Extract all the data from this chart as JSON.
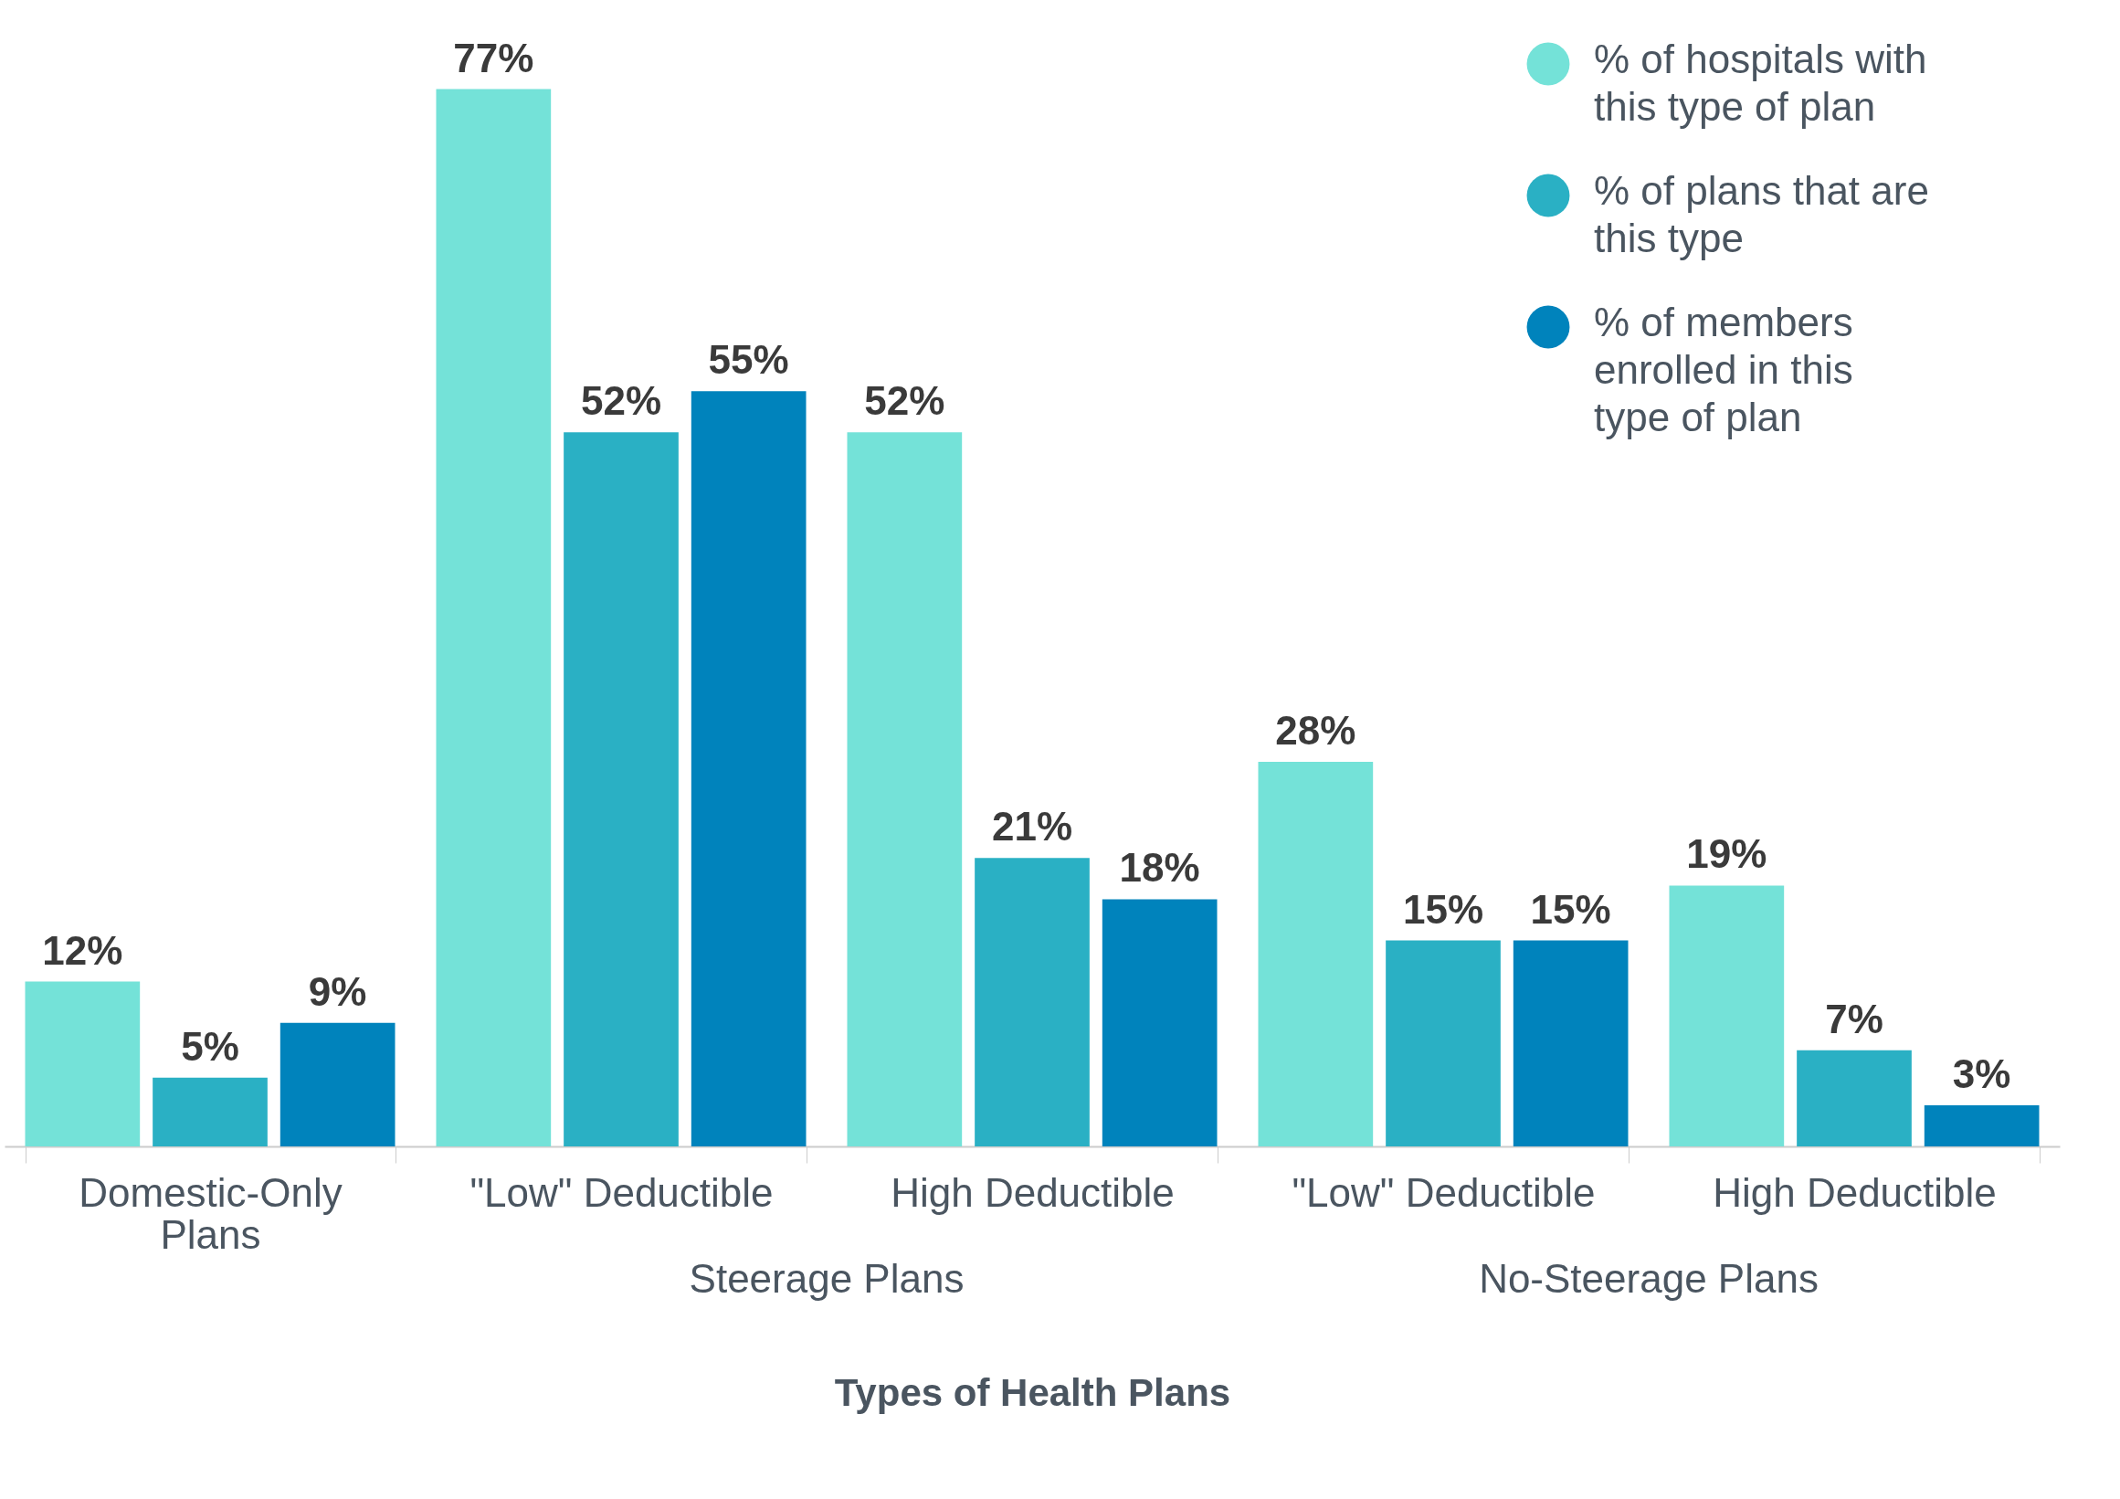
{
  "chart_data": {
    "type": "bar",
    "categories": [
      "Domestic-Only Plans",
      "\"Low\" Deductible",
      "High Deductible",
      "\"Low\" Deductible",
      "High Deductible"
    ],
    "series": [
      {
        "name": "% of hospitals with this type of plan",
        "color": "#74e2d8",
        "values": [
          12,
          77,
          52,
          28,
          19
        ],
        "value_labels": [
          "12%",
          "77%",
          "52%",
          "28%",
          "19%"
        ]
      },
      {
        "name": "% of plans that are this type",
        "color": "#2ab0c4",
        "values": [
          5,
          52,
          21,
          15,
          7
        ],
        "value_labels": [
          "5%",
          "52%",
          "21%",
          "15%",
          "7%"
        ]
      },
      {
        "name": "% of members enrolled in this type of plan",
        "color": "#0083bc",
        "values": [
          9,
          55,
          18,
          15,
          3
        ],
        "value_labels": [
          "9%",
          "55%",
          "18%",
          "15%",
          "3%"
        ]
      }
    ],
    "xlabel": "Types of Health Plans",
    "annotations": [
      "Steerage Plans",
      "No-Steerage Plans"
    ],
    "legend": "top right",
    "grid": false
  }
}
